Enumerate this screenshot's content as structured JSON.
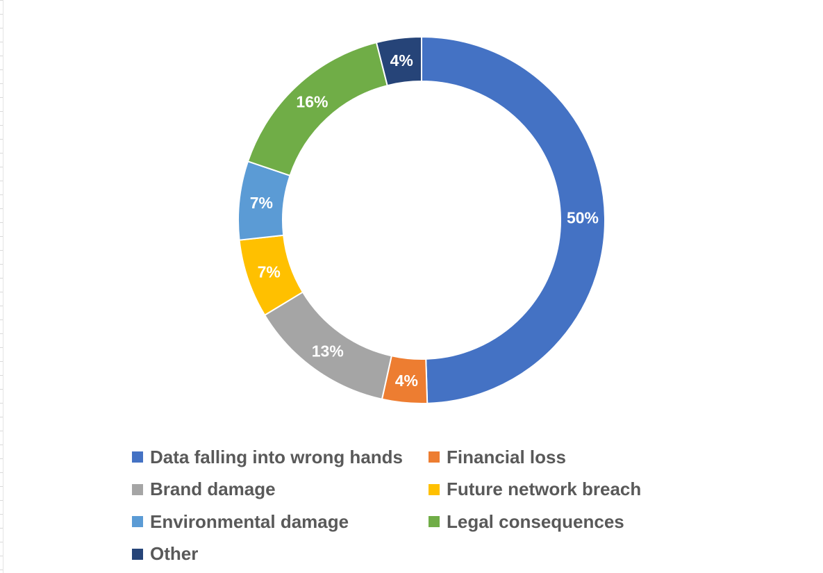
{
  "chart_data": {
    "type": "pie",
    "subtype": "doughnut",
    "title": "",
    "legend_position": "bottom",
    "categories": [
      "Data falling into wrong hands",
      "Financial loss",
      "Brand damage",
      "Future network breach",
      "Environmental damage",
      "Legal consequences",
      "Other"
    ],
    "values": [
      50,
      4,
      13,
      7,
      7,
      16,
      4
    ],
    "labels": [
      "50%",
      "4%",
      "13%",
      "7%",
      "7%",
      "16%",
      "4%"
    ],
    "colors": [
      "#4472C4",
      "#ED7D31",
      "#A5A5A5",
      "#FFC000",
      "#5B9BD5",
      "#70AD47",
      "#264478"
    ]
  }
}
